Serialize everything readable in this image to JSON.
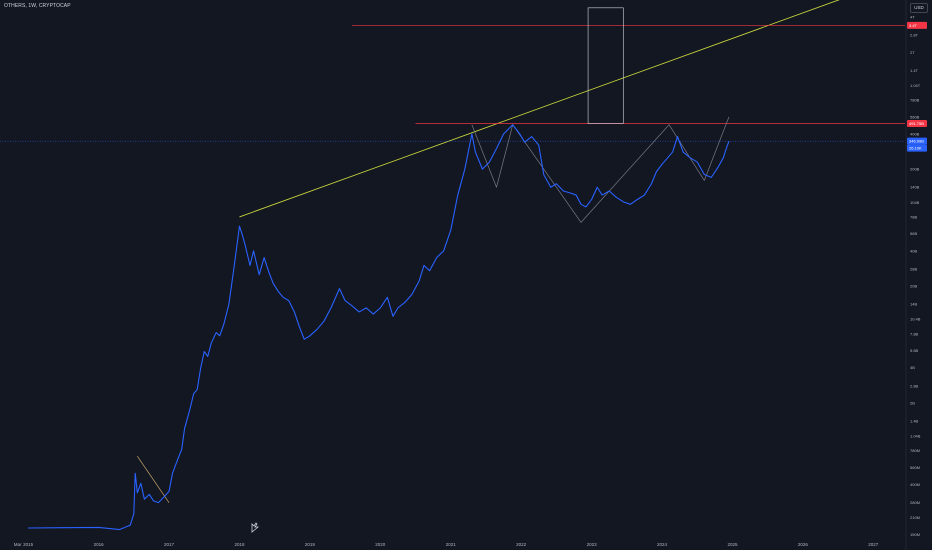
{
  "header": {
    "symbol_title": "OTHERS, 1W, CRYPTOCAP",
    "currency": "USD"
  },
  "colors": {
    "background": "#131722",
    "price_line": "#2962ff",
    "trend_line": "#c8d43c",
    "resistance_line": "#f23645",
    "pattern_line": "#787b86",
    "box_border": "#d1d4dc"
  },
  "chart_data": {
    "type": "line",
    "title": "OTHERS, 1W, CRYPTOCAP",
    "y_scale": "log",
    "ylim": [
      170000000,
      5600000000000
    ],
    "xlim": [
      2014.6,
      2027.45
    ],
    "grid": false,
    "x_tick_labels": [
      {
        "t": 2014.85,
        "label": "Mar"
      },
      {
        "t": 2015.0,
        "label": "2015"
      },
      {
        "t": 2016.0,
        "label": "2016"
      },
      {
        "t": 2017.0,
        "label": "2017"
      },
      {
        "t": 2018.0,
        "label": "2018"
      },
      {
        "t": 2019.0,
        "label": "2019"
      },
      {
        "t": 2020.0,
        "label": "2020"
      },
      {
        "t": 2021.0,
        "label": "2021"
      },
      {
        "t": 2022.0,
        "label": "2022"
      },
      {
        "t": 2023.0,
        "label": "2023"
      },
      {
        "t": 2024.0,
        "label": "2024"
      },
      {
        "t": 2025.0,
        "label": "2025"
      },
      {
        "t": 2026.0,
        "label": "2026"
      },
      {
        "t": 2027.0,
        "label": "2027"
      }
    ],
    "y_tick_labels": [
      {
        "v": 4000000000000,
        "label": "4T"
      },
      {
        "v": 2800000000000,
        "label": "2.8T"
      },
      {
        "v": 2000000000000,
        "label": "2T"
      },
      {
        "v": 1400000000000,
        "label": "1.4T"
      },
      {
        "v": 1040000000000,
        "label": "1.04T"
      },
      {
        "v": 780000000000,
        "label": "780B"
      },
      {
        "v": 560000000000,
        "label": "560B"
      },
      {
        "v": 400000000000,
        "label": "400B"
      },
      {
        "v": 200000000000,
        "label": "200B"
      },
      {
        "v": 140000000000,
        "label": "140B"
      },
      {
        "v": 104000000000,
        "label": "104B"
      },
      {
        "v": 78000000000,
        "label": "78B"
      },
      {
        "v": 56000000000,
        "label": "56B"
      },
      {
        "v": 40000000000,
        "label": "40B"
      },
      {
        "v": 28000000000,
        "label": "28B"
      },
      {
        "v": 20000000000,
        "label": "20B"
      },
      {
        "v": 14000000000,
        "label": "14B"
      },
      {
        "v": 10400000000,
        "label": "10.4B"
      },
      {
        "v": 7800000000,
        "label": "7.8B"
      },
      {
        "v": 5600000000,
        "label": "5.6B"
      },
      {
        "v": 4000000000,
        "label": "4B"
      },
      {
        "v": 2800000000,
        "label": "2.8B"
      },
      {
        "v": 2000000000,
        "label": "2B"
      },
      {
        "v": 1400000000,
        "label": "1.4B"
      },
      {
        "v": 1040000000,
        "label": "1.04B"
      },
      {
        "v": 780000000,
        "label": "780M"
      },
      {
        "v": 560000000,
        "label": "560M"
      },
      {
        "v": 400000000,
        "label": "400M"
      },
      {
        "v": 280000000,
        "label": "280M"
      },
      {
        "v": 210000000,
        "label": "210M"
      },
      {
        "v": 150000000,
        "label": "150M"
      }
    ],
    "price_badges": [
      {
        "v": 3400000000000,
        "label": "3.4T",
        "color": "#f23645"
      },
      {
        "v": 491750000000,
        "label": "491.75B",
        "color": "#f23645"
      },
      {
        "v": 346990000000,
        "label": "346.99B",
        "color": "#2962ff"
      },
      {
        "v": 346990000000,
        "label": "26.10K",
        "color": "#2962ff",
        "offset": 1
      }
    ],
    "series": [
      {
        "role": "price",
        "points": [
          [
            2015.0,
            170000000
          ],
          [
            2015.5,
            171000000
          ],
          [
            2016.0,
            172000000
          ],
          [
            2016.3,
            165000000
          ],
          [
            2016.45,
            180000000
          ],
          [
            2016.5,
            225000000
          ],
          [
            2016.52,
            500000000
          ],
          [
            2016.55,
            340000000
          ],
          [
            2016.6,
            410000000
          ],
          [
            2016.65,
            300000000
          ],
          [
            2016.72,
            330000000
          ],
          [
            2016.78,
            290000000
          ],
          [
            2016.85,
            280000000
          ],
          [
            2016.92,
            310000000
          ],
          [
            2017.0,
            350000000
          ],
          [
            2017.05,
            500000000
          ],
          [
            2017.12,
            650000000
          ],
          [
            2017.18,
            800000000
          ],
          [
            2017.22,
            1200000000
          ],
          [
            2017.3,
            1800000000
          ],
          [
            2017.35,
            2400000000
          ],
          [
            2017.4,
            2600000000
          ],
          [
            2017.45,
            4000000000
          ],
          [
            2017.5,
            5500000000
          ],
          [
            2017.55,
            5000000000
          ],
          [
            2017.6,
            6500000000
          ],
          [
            2017.67,
            8000000000
          ],
          [
            2017.72,
            7500000000
          ],
          [
            2017.78,
            9500000000
          ],
          [
            2017.85,
            14000000000
          ],
          [
            2017.92,
            28000000000
          ],
          [
            2018.0,
            65000000000
          ],
          [
            2018.04,
            55000000000
          ],
          [
            2018.08,
            45000000000
          ],
          [
            2018.15,
            30000000000
          ],
          [
            2018.2,
            40000000000
          ],
          [
            2018.28,
            25000000000
          ],
          [
            2018.35,
            35000000000
          ],
          [
            2018.42,
            26000000000
          ],
          [
            2018.48,
            21000000000
          ],
          [
            2018.55,
            18000000000
          ],
          [
            2018.62,
            16000000000
          ],
          [
            2018.7,
            15000000000
          ],
          [
            2018.78,
            12000000000
          ],
          [
            2018.85,
            9000000000
          ],
          [
            2018.92,
            7000000000
          ],
          [
            2019.0,
            7500000000
          ],
          [
            2019.1,
            8500000000
          ],
          [
            2019.2,
            10000000000
          ],
          [
            2019.3,
            13000000000
          ],
          [
            2019.42,
            19000000000
          ],
          [
            2019.5,
            15000000000
          ],
          [
            2019.6,
            13500000000
          ],
          [
            2019.7,
            12000000000
          ],
          [
            2019.8,
            13000000000
          ],
          [
            2019.9,
            11500000000
          ],
          [
            2020.0,
            13000000000
          ],
          [
            2020.1,
            16000000000
          ],
          [
            2020.18,
            11000000000
          ],
          [
            2020.25,
            13000000000
          ],
          [
            2020.35,
            14500000000
          ],
          [
            2020.45,
            17000000000
          ],
          [
            2020.55,
            22000000000
          ],
          [
            2020.62,
            30000000000
          ],
          [
            2020.7,
            27000000000
          ],
          [
            2020.8,
            35000000000
          ],
          [
            2020.9,
            40000000000
          ],
          [
            2021.0,
            60000000000
          ],
          [
            2021.1,
            120000000000
          ],
          [
            2021.2,
            200000000000
          ],
          [
            2021.3,
            400000000000
          ],
          [
            2021.35,
            280000000000
          ],
          [
            2021.45,
            200000000000
          ],
          [
            2021.55,
            230000000000
          ],
          [
            2021.65,
            300000000000
          ],
          [
            2021.75,
            400000000000
          ],
          [
            2021.88,
            480000000000
          ],
          [
            2021.98,
            400000000000
          ],
          [
            2022.05,
            340000000000
          ],
          [
            2022.15,
            380000000000
          ],
          [
            2022.25,
            320000000000
          ],
          [
            2022.32,
            180000000000
          ],
          [
            2022.42,
            140000000000
          ],
          [
            2022.5,
            150000000000
          ],
          [
            2022.6,
            130000000000
          ],
          [
            2022.7,
            125000000000
          ],
          [
            2022.78,
            120000000000
          ],
          [
            2022.85,
            100000000000
          ],
          [
            2022.92,
            95000000000
          ],
          [
            2023.0,
            110000000000
          ],
          [
            2023.08,
            140000000000
          ],
          [
            2023.15,
            120000000000
          ],
          [
            2023.25,
            130000000000
          ],
          [
            2023.35,
            115000000000
          ],
          [
            2023.45,
            105000000000
          ],
          [
            2023.55,
            100000000000
          ],
          [
            2023.65,
            110000000000
          ],
          [
            2023.75,
            120000000000
          ],
          [
            2023.85,
            150000000000
          ],
          [
            2023.92,
            190000000000
          ],
          [
            2024.0,
            220000000000
          ],
          [
            2024.08,
            250000000000
          ],
          [
            2024.15,
            280000000000
          ],
          [
            2024.22,
            380000000000
          ],
          [
            2024.3,
            280000000000
          ],
          [
            2024.4,
            250000000000
          ],
          [
            2024.5,
            230000000000
          ],
          [
            2024.6,
            180000000000
          ],
          [
            2024.7,
            170000000000
          ],
          [
            2024.8,
            210000000000
          ],
          [
            2024.87,
            250000000000
          ],
          [
            2024.92,
            310000000000
          ],
          [
            2024.95,
            346990000000
          ]
        ]
      },
      {
        "role": "trend-line",
        "points": [
          [
            2018.0,
            78000000000
          ],
          [
            2027.45,
            9000000000000
          ]
        ]
      },
      {
        "role": "resistance-upper",
        "points": [
          [
            2019.6,
            3400000000000
          ],
          [
            2027.45,
            3400000000000
          ]
        ]
      },
      {
        "role": "resistance-lower",
        "points": [
          [
            2020.5,
            491750000000
          ],
          [
            2027.45,
            491750000000
          ]
        ]
      },
      {
        "role": "current-price",
        "points": [
          [
            2014.6,
            346990000000
          ],
          [
            2027.45,
            346990000000
          ]
        ]
      },
      {
        "role": "pattern-2016",
        "points": [
          [
            2016.55,
            700000000
          ],
          [
            2017.0,
            280000000
          ]
        ]
      },
      {
        "role": "zigzag",
        "points": [
          [
            2021.3,
            480000000000
          ],
          [
            2021.65,
            140000000000
          ],
          [
            2021.88,
            480000000000
          ],
          [
            2022.85,
            70000000000
          ],
          [
            2024.1,
            480000000000
          ],
          [
            2024.6,
            160000000000
          ],
          [
            2024.95,
            560000000000
          ]
        ]
      }
    ],
    "box": {
      "t0": 2022.95,
      "t1": 2023.45,
      "v0": 4800000000000,
      "v1": 491750000000
    }
  }
}
